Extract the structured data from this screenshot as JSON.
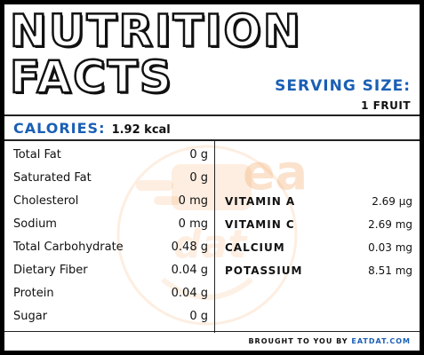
{
  "header": {
    "title_line1": "NUTRITION",
    "title_line2": "FACTS",
    "serving_label": "SERVING SIZE:",
    "serving_value": "1 FRUIT"
  },
  "calories": {
    "label": "CALORIES:",
    "value": "1.92 kcal"
  },
  "nutrients": [
    {
      "name": "Total Fat",
      "value": "0 g"
    },
    {
      "name": "Saturated Fat",
      "value": "0 g"
    },
    {
      "name": "Cholesterol",
      "value": "0 mg"
    },
    {
      "name": "Sodium",
      "value": "0 mg"
    },
    {
      "name": "Total Carbohydrate",
      "value": "0.48 g"
    },
    {
      "name": "Dietary Fiber",
      "value": "0.04 g"
    },
    {
      "name": "Protein",
      "value": "0.04 g"
    },
    {
      "name": "Sugar",
      "value": "0 g"
    }
  ],
  "vitamins": [
    {
      "name": "VITAMIN A",
      "value": "2.69 µg"
    },
    {
      "name": "VITAMIN C",
      "value": "2.69 mg"
    },
    {
      "name": "CALCIUM",
      "value": "0.03 mg"
    },
    {
      "name": "POTASSIUM",
      "value": "8.51 mg"
    }
  ],
  "footer": {
    "prefix": "BROUGHT TO YOU BY ",
    "brand": "EATDAT.COM"
  },
  "watermark": {
    "name": "eatdat-logo-watermark",
    "text_line1": "eat",
    "text_line2": "dat",
    "color": "#f2a05a"
  },
  "colors": {
    "accent_blue": "#1a5fb4",
    "frame": "#000000",
    "text": "#111111"
  }
}
